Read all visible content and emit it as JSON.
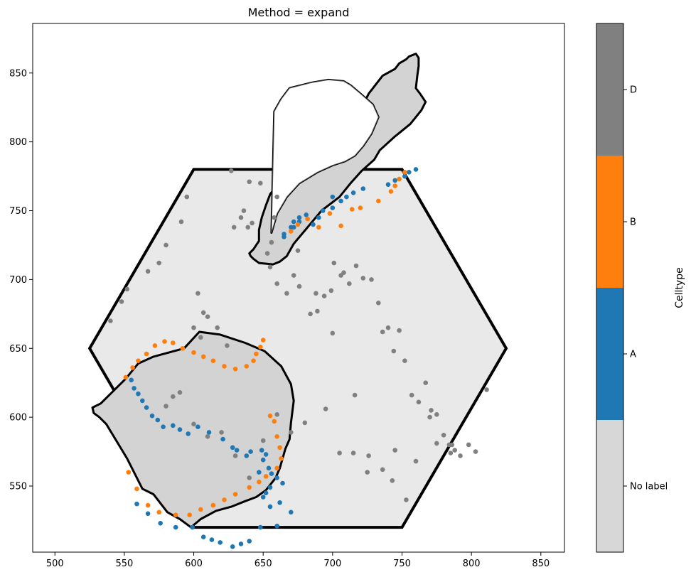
{
  "chart_data": {
    "type": "scatter",
    "title": "Method = expand",
    "xlabel": "",
    "ylabel": "",
    "xlim": [
      484,
      867
    ],
    "ylim": [
      502,
      886
    ],
    "xticks": [
      500,
      550,
      600,
      650,
      700,
      750,
      800,
      850
    ],
    "yticks": [
      550,
      600,
      650,
      700,
      750,
      800,
      850
    ],
    "grid": false,
    "colorbar": {
      "label": "Celltype",
      "categories": [
        "No label",
        "A",
        "B",
        "D"
      ],
      "colors": [
        "#d7d7d7",
        "#1f77b4",
        "#ff7f0e",
        "#808080"
      ]
    },
    "boundary_hexagon": {
      "x": [
        525,
        600,
        750,
        825,
        750,
        600,
        525
      ],
      "y": [
        650,
        780,
        780,
        650,
        520,
        520,
        650
      ]
    },
    "expanded_regions": [
      {
        "name": "upper-region",
        "outer_x": [
          640,
          643,
          647,
          647,
          649,
          652,
          655,
          662,
          671,
          675,
          680,
          689,
          701,
          709,
          712,
          716,
          719,
          723,
          726,
          736,
          745,
          748,
          753,
          755,
          760,
          762,
          762,
          761,
          760,
          763,
          767,
          764,
          756,
          745,
          734,
          730,
          721,
          713,
          705,
          692,
          682,
          672,
          667,
          662,
          657,
          647,
          643,
          641,
          640
        ],
        "outer_y": [
          719,
          722,
          728,
          736,
          745,
          754,
          762,
          771,
          779,
          786,
          791,
          798,
          804,
          808,
          812,
          817,
          822,
          829,
          835,
          848,
          853,
          857,
          860,
          862,
          864,
          861,
          855,
          848,
          839,
          835,
          829,
          823,
          813,
          804,
          794,
          787,
          779,
          770,
          760,
          750,
          738,
          726,
          717,
          713,
          711,
          712,
          715,
          717,
          719
        ],
        "inner_x": [
          656,
          660,
          667,
          676,
          689,
          700,
          709,
          716,
          722,
          728,
          733,
          729,
          720,
          713,
          708,
          697,
          685,
          669,
          663,
          658,
          656
        ],
        "inner_y": [
          734,
          748,
          760,
          770,
          778,
          783,
          786,
          790,
          797,
          806,
          818,
          827,
          835,
          841,
          844,
          845,
          843,
          839,
          831,
          822,
          734
        ]
      },
      {
        "name": "lower-region",
        "outer_x": [
          533,
          551,
          560,
          571,
          593,
          604,
          619,
          637,
          651,
          663,
          670,
          672,
          670,
          669,
          666,
          662,
          659,
          652,
          645,
          637,
          627,
          616,
          605,
          598,
          590,
          581,
          571,
          563,
          552,
          537,
          532,
          528,
          527,
          533
        ],
        "outer_y": [
          610,
          628,
          639,
          644,
          650,
          662,
          660,
          654,
          648,
          637,
          624,
          612,
          596,
          584,
          577,
          563,
          556,
          547,
          542,
          539,
          535,
          532,
          526,
          520,
          526,
          531,
          544,
          548,
          570,
          595,
          600,
          603,
          607,
          610
        ]
      }
    ],
    "series": [
      {
        "name": "A",
        "color": "#1f77b4",
        "x": [
          555,
          557,
          560,
          563,
          566,
          570,
          574,
          578,
          585,
          590,
          596,
          603,
          611,
          621,
          628,
          631,
          638,
          641,
          649,
          652,
          650,
          654,
          656,
          660,
          664,
          647,
          655,
          652,
          650,
          662,
          655,
          670,
          660,
          648,
          640,
          634,
          628,
          619,
          613,
          607,
          599,
          587,
          576,
          567,
          559,
          665,
          670,
          672,
          676,
          681,
          693,
          700,
          706,
          710,
          715,
          722,
          740,
          745,
          752,
          755,
          760,
          700,
          690,
          686,
          676,
          672,
          665
        ],
        "y": [
          627,
          621,
          617,
          612,
          607,
          601,
          598,
          593,
          594,
          591,
          588,
          593,
          589,
          584,
          578,
          576,
          572,
          575,
          576,
          573,
          569,
          563,
          559,
          556,
          552,
          560,
          549,
          545,
          542,
          538,
          535,
          531,
          521,
          520,
          510,
          508,
          506,
          509,
          511,
          513,
          520,
          520,
          523,
          530,
          537,
          731,
          738,
          742,
          745,
          747,
          750,
          752,
          757,
          760,
          763,
          766,
          769,
          772,
          775,
          778,
          780,
          760,
          745,
          740,
          742,
          738,
          733
        ]
      },
      {
        "name": "B",
        "color": "#ff7f0e",
        "x": [
          551,
          556,
          560,
          566,
          572,
          579,
          585,
          592,
          600,
          607,
          614,
          622,
          630,
          638,
          643,
          645,
          648,
          650,
          655,
          658,
          660,
          662,
          663,
          660,
          652,
          647,
          640,
          630,
          622,
          614,
          605,
          597,
          587,
          575,
          567,
          559,
          553,
          670,
          675,
          682,
          690,
          698,
          706,
          714,
          720,
          733,
          742,
          745,
          748,
          752
        ],
        "y": [
          629,
          636,
          641,
          646,
          652,
          655,
          654,
          650,
          647,
          644,
          641,
          637,
          635,
          637,
          641,
          646,
          651,
          656,
          601,
          597,
          586,
          578,
          570,
          563,
          557,
          553,
          549,
          544,
          540,
          536,
          533,
          529,
          529,
          531,
          536,
          548,
          560,
          735,
          740,
          744,
          738,
          748,
          739,
          751,
          752,
          757,
          764,
          768,
          773,
          778
        ]
      },
      {
        "name": "D",
        "color": "#808080",
        "x": [
          540,
          548,
          552,
          567,
          575,
          580,
          591,
          595,
          603,
          607,
          617,
          624,
          629,
          634,
          636,
          639,
          642,
          648,
          653,
          656,
          658,
          660,
          667,
          672,
          676,
          684,
          689,
          694,
          699,
          701,
          706,
          712,
          717,
          722,
          728,
          733,
          736,
          740,
          744,
          748,
          752,
          757,
          762,
          767,
          771,
          775,
          780,
          784,
          786,
          788,
          792,
          798,
          803,
          811,
          580,
          585,
          590,
          600,
          610,
          620,
          630,
          640,
          650,
          660,
          670,
          680,
          695,
          705,
          715,
          725,
          745,
          760,
          775,
          785,
          770,
          600,
          605,
          610,
          627,
          640,
          655,
          660,
          675,
          688,
          700,
          708,
          716,
          726,
          736,
          743,
          753
        ],
        "y": [
          670,
          684,
          693,
          706,
          712,
          725,
          742,
          760,
          690,
          676,
          665,
          652,
          738,
          745,
          750,
          738,
          741,
          770,
          719,
          727,
          745,
          760,
          690,
          703,
          695,
          675,
          677,
          688,
          692,
          712,
          703,
          697,
          710,
          701,
          700,
          683,
          662,
          665,
          648,
          663,
          641,
          616,
          611,
          625,
          605,
          602,
          587,
          580,
          580,
          576,
          572,
          580,
          575,
          620,
          608,
          615,
          618,
          595,
          586,
          589,
          572,
          556,
          583,
          602,
          589,
          596,
          606,
          574,
          574,
          560,
          576,
          568,
          581,
          574,
          600,
          665,
          658,
          673,
          779,
          771,
          709,
          697,
          721,
          690,
          661,
          705,
          616,
          572,
          562,
          554,
          540
        ]
      }
    ]
  }
}
